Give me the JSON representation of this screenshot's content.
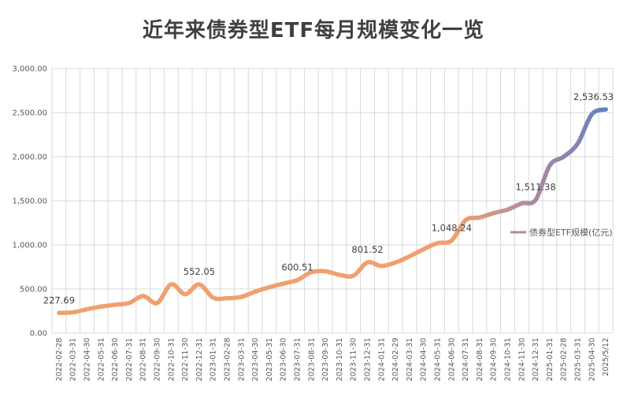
{
  "chart_data": {
    "type": "line",
    "title": "近年来债券型ETF每月规模变化一览",
    "xlabel": "",
    "ylabel": "",
    "ylim": [
      0,
      3000
    ],
    "yticks": [
      "0.00",
      "500.00",
      "1,000.00",
      "1,500.00",
      "2,000.00",
      "2,500.00",
      "3,000.00"
    ],
    "grid": true,
    "legend_position": "right",
    "categories": [
      "2022-02-28",
      "2022-03-31",
      "2022-04-30",
      "2022-05-31",
      "2022-06-30",
      "2022-07-31",
      "2022-08-31",
      "2022-09-30",
      "2022-10-31",
      "2022-11-30",
      "2022-12-31",
      "2023-01-31",
      "2023-02-28",
      "2023-03-31",
      "2023-04-30",
      "2023-05-31",
      "2023-06-30",
      "2023-07-31",
      "2023-08-31",
      "2023-09-30",
      "2023-10-31",
      "2023-11-30",
      "2023-12-31",
      "2024-01-31",
      "2024-02-29",
      "2024-03-31",
      "2024-04-30",
      "2024-05-31",
      "2024-06-30",
      "2024-07-31",
      "2024-08-31",
      "2024-09-30",
      "2024-10-31",
      "2024-11-30",
      "2024-12-31",
      "2025-01-31",
      "2025-02-28",
      "2025-03-31",
      "2025-04-30",
      "2025/5/12"
    ],
    "series": [
      {
        "name": "债券型ETF规模(亿元)",
        "values": [
          227.69,
          235,
          270,
          300,
          320,
          340,
          420,
          340,
          552,
          440,
          552.05,
          400,
          395,
          410,
          470,
          520,
          560,
          600.51,
          690,
          700,
          660,
          650,
          801.52,
          760,
          800,
          870,
          950,
          1020,
          1048.24,
          1280,
          1310,
          1360,
          1400,
          1470,
          1511.38,
          1900,
          2000,
          2150,
          2480,
          2536.53
        ]
      }
    ],
    "data_labels": [
      {
        "index": 0,
        "text": "227.69"
      },
      {
        "index": 10,
        "text": "552.05"
      },
      {
        "index": 17,
        "text": "600.51"
      },
      {
        "index": 22,
        "text": "801.52"
      },
      {
        "index": 28,
        "text": "1,048.24"
      },
      {
        "index": 34,
        "text": "1,511.38"
      },
      {
        "index": 39,
        "text": "2,536.53"
      }
    ],
    "colors": {
      "line_start": "#f0a070",
      "line_mid": "#b28a9c",
      "line_end": "#5a7fc4",
      "grid": "#d9d9d9"
    }
  }
}
